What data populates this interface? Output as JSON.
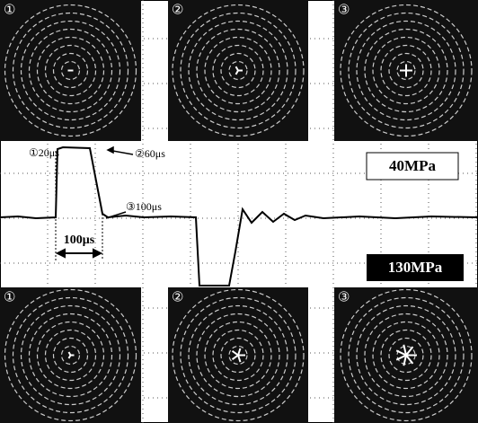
{
  "top_row": {
    "panels": [
      {
        "label": "①"
      },
      {
        "label": "②"
      },
      {
        "label": "③"
      }
    ]
  },
  "bottom_row": {
    "panels": [
      {
        "label": "①"
      },
      {
        "label": "②"
      },
      {
        "label": "③"
      }
    ]
  },
  "annotations": {
    "point1": "①20μs",
    "point2": "②60μs",
    "point3": "③100μs",
    "duration": "100μs"
  },
  "pressures": {
    "upper": "40MPa",
    "lower": "130MPa"
  }
}
